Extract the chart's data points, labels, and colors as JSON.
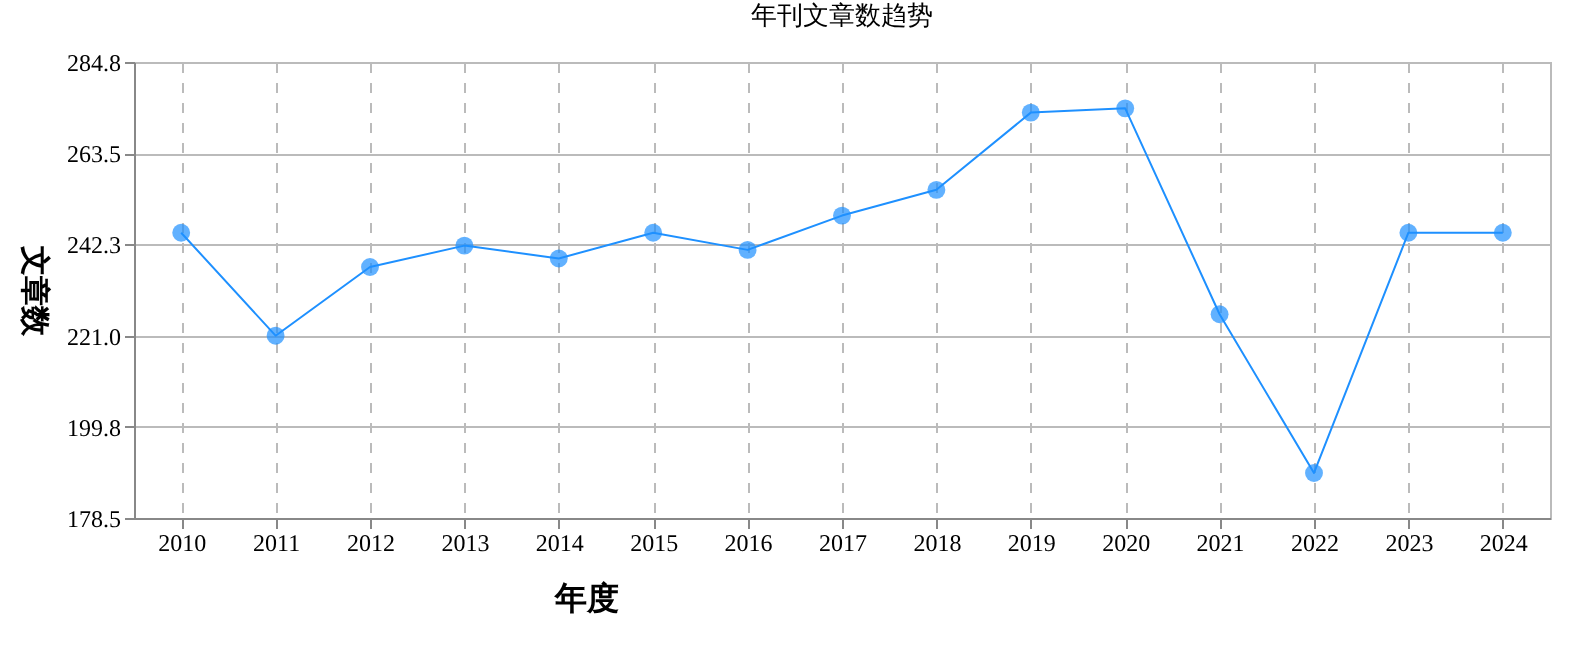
{
  "chart_data": {
    "type": "line",
    "title": "年刊文章数趋势",
    "xlabel": "年度",
    "ylabel": "文章数",
    "categories": [
      "2010",
      "2011",
      "2012",
      "2013",
      "2014",
      "2015",
      "2016",
      "2017",
      "2018",
      "2019",
      "2020",
      "2021",
      "2022",
      "2023",
      "2024"
    ],
    "series": [
      {
        "color": "#1e90ff",
        "values": [
          245,
          221,
          237,
          242,
          239,
          245,
          241,
          249,
          255,
          273,
          274,
          226,
          189,
          245,
          245
        ]
      }
    ],
    "ylim": [
      178.5,
      284.8
    ],
    "yticks": [
      178.5,
      199.8,
      {
        "value": 221,
        "label": "221.0"
      },
      242.3,
      263.5,
      284.8
    ],
    "grid": true,
    "marker": "circle",
    "line_style": "solid"
  }
}
